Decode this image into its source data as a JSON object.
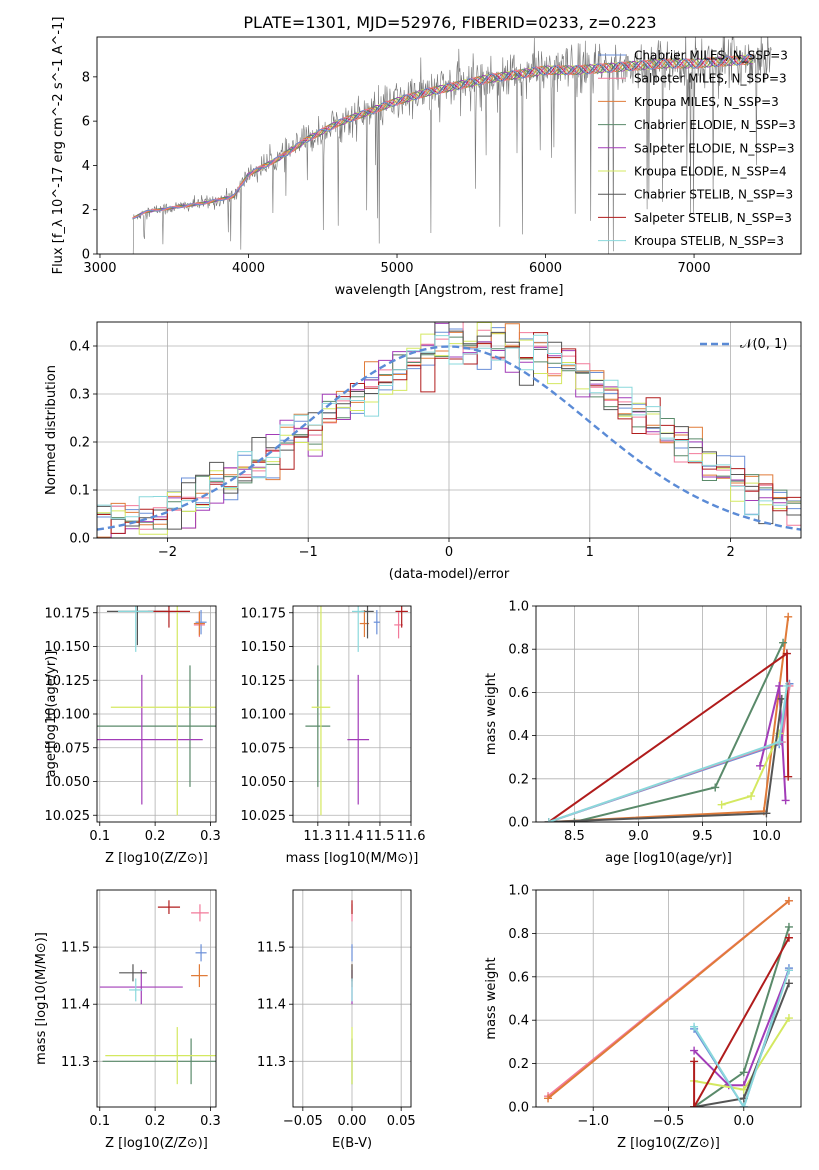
{
  "chart_data": [
    {
      "id": "spectrum",
      "type": "line",
      "title": "PLATE=1301, MJD=52976, FIBERID=0233, z=0.223",
      "xlabel": "wavelength [Angstrom, rest frame]",
      "ylabel": "Flux [f_λ 10^-17 erg cm^-2 s^-1 A^-1]",
      "xlim": [
        2980,
        7720
      ],
      "ylim": [
        0,
        9.8
      ],
      "xticks": [
        3000,
        4000,
        5000,
        6000,
        7000
      ],
      "yticks": [
        0,
        2,
        4,
        6,
        8
      ],
      "grid": false,
      "legend_position": "upper-right",
      "data_start": 3220,
      "data_end": 7520,
      "data_series": "grey observed spectrum (noisy)",
      "legend": [
        {
          "label": "Chabrier MILES, N_SSP=3",
          "color": "#6a8fd8"
        },
        {
          "label": "Salpeter MILES, N_SSP=3",
          "color": "#f27a9a"
        },
        {
          "label": "Kroupa MILES, N_SSP=3",
          "color": "#e07b39"
        },
        {
          "label": "Chabrier ELODIE, N_SSP=3",
          "color": "#5a8a6a"
        },
        {
          "label": "Salpeter ELODIE, N_SSP=3",
          "color": "#a23cb8"
        },
        {
          "label": "Kroupa ELODIE, N_SSP=4",
          "color": "#d4e860"
        },
        {
          "label": "Chabrier STELIB, N_SSP=3",
          "color": "#555555"
        },
        {
          "label": "Salpeter STELIB, N_SSP=3",
          "color": "#b01c1c"
        },
        {
          "label": "Kroupa STELIB, N_SSP=3",
          "color": "#8ad8dc"
        }
      ],
      "continuum": [
        [
          3220,
          1.6
        ],
        [
          3300,
          1.9
        ],
        [
          3500,
          2.1
        ],
        [
          3700,
          2.3
        ],
        [
          3900,
          2.6
        ],
        [
          4000,
          3.6
        ],
        [
          4200,
          4.3
        ],
        [
          4400,
          5.2
        ],
        [
          4600,
          5.9
        ],
        [
          4800,
          6.4
        ],
        [
          5000,
          6.9
        ],
        [
          5200,
          7.3
        ],
        [
          5400,
          7.6
        ],
        [
          5600,
          7.9
        ],
        [
          5800,
          8.1
        ],
        [
          6000,
          8.3
        ],
        [
          6200,
          8.3
        ],
        [
          6400,
          8.4
        ],
        [
          6600,
          8.5
        ],
        [
          6800,
          8.6
        ],
        [
          7000,
          8.6
        ],
        [
          7200,
          8.7
        ],
        [
          7400,
          8.8
        ],
        [
          7500,
          9.0
        ]
      ]
    },
    {
      "id": "residuals",
      "type": "bar",
      "xlabel": "(data-model)/error",
      "ylabel": "Normed distribution",
      "xlim": [
        -2.5,
        2.5
      ],
      "ylim": [
        0,
        0.45
      ],
      "xticks": [
        -2,
        -1,
        0,
        1,
        2
      ],
      "yticks": [
        0.0,
        0.1,
        0.2,
        0.3,
        0.4
      ],
      "grid": true,
      "legend_position": "upper-right",
      "legend": [
        {
          "label": "𝒩(0, 1)",
          "color": "#5b8bd6"
        }
      ],
      "bin_width": 0.1,
      "note": "nine step histograms (one per model), colors as in spectrum legend"
    },
    {
      "id": "age-vs-Z",
      "type": "scatter",
      "xlabel": "Z [log10(Z/Z⊙)]",
      "ylabel": "age  [log10(age/yr)]",
      "xlim": [
        0.095,
        0.31
      ],
      "ylim": [
        10.02,
        10.18
      ],
      "xticks": [
        0.1,
        0.2,
        0.3
      ],
      "yticks": [
        10.025,
        10.05,
        10.075,
        10.1,
        10.125,
        10.15,
        10.175
      ],
      "grid": true,
      "points": [
        {
          "x": 0.283,
          "y": 10.168,
          "xerr": 0.01,
          "yerr": 0.009,
          "color": "#6a8fd8"
        },
        {
          "x": 0.28,
          "y": 10.166,
          "xerr": 0.01,
          "yerr": 0.009,
          "color": "#f27a9a"
        },
        {
          "x": 0.28,
          "y": 10.167,
          "xerr": 0.01,
          "yerr": 0.009,
          "color": "#e07b39"
        },
        {
          "x": 0.263,
          "y": 10.091,
          "xerr": 0.17,
          "yerr": 0.045,
          "color": "#5a8a6a"
        },
        {
          "x": 0.176,
          "y": 10.081,
          "xerr": 0.11,
          "yerr": 0.048,
          "color": "#a23cb8"
        },
        {
          "x": 0.24,
          "y": 10.105,
          "xerr": 0.12,
          "yerr": 0.08,
          "color": "#d4e860"
        },
        {
          "x": 0.168,
          "y": 10.176,
          "xerr": 0.055,
          "yerr": 0.025,
          "color": "#555555"
        },
        {
          "x": 0.225,
          "y": 10.176,
          "xerr": 0.038,
          "yerr": 0.012,
          "color": "#b01c1c"
        },
        {
          "x": 0.165,
          "y": 10.176,
          "xerr": 0.032,
          "yerr": 0.03,
          "color": "#8ad8dc"
        }
      ]
    },
    {
      "id": "age-vs-mass",
      "type": "scatter",
      "xlabel": "mass [log10(M/M⊙)]",
      "ylabel": "",
      "xlim": [
        11.22,
        11.6
      ],
      "ylim": [
        10.02,
        10.18
      ],
      "xticks": [
        11.3,
        11.4,
        11.5,
        11.6
      ],
      "yticks": [
        10.025,
        10.05,
        10.075,
        10.1,
        10.125,
        10.15,
        10.175
      ],
      "grid": true,
      "points": [
        {
          "x": 11.49,
          "y": 10.168,
          "xerr": 0.01,
          "yerr": 0.009,
          "color": "#6a8fd8"
        },
        {
          "x": 11.56,
          "y": 10.166,
          "xerr": 0.014,
          "yerr": 0.01,
          "color": "#f27a9a"
        },
        {
          "x": 11.45,
          "y": 10.167,
          "xerr": 0.015,
          "yerr": 0.01,
          "color": "#e07b39"
        },
        {
          "x": 11.3,
          "y": 10.091,
          "xerr": 0.04,
          "yerr": 0.045,
          "color": "#5a8a6a"
        },
        {
          "x": 11.43,
          "y": 10.081,
          "xerr": 0.035,
          "yerr": 0.048,
          "color": "#a23cb8"
        },
        {
          "x": 11.31,
          "y": 10.105,
          "xerr": 0.03,
          "yerr": 0.08,
          "color": "#d4e860"
        },
        {
          "x": 11.46,
          "y": 10.176,
          "xerr": 0.02,
          "yerr": 0.02,
          "color": "#555555"
        },
        {
          "x": 11.57,
          "y": 10.176,
          "xerr": 0.02,
          "yerr": 0.012,
          "color": "#b01c1c"
        },
        {
          "x": 11.43,
          "y": 10.176,
          "xerr": 0.02,
          "yerr": 0.03,
          "color": "#8ad8dc"
        }
      ]
    },
    {
      "id": "massweight-vs-age",
      "type": "line",
      "xlabel": "age  [log10(age/yr)]",
      "ylabel": "mass weight",
      "xlim": [
        8.2,
        10.27
      ],
      "ylim": [
        0,
        1
      ],
      "xticks": [
        8.5,
        9.0,
        9.5,
        10.0
      ],
      "yticks": [
        0.0,
        0.2,
        0.4,
        0.6,
        0.8,
        1.0
      ],
      "grid": true,
      "series": [
        {
          "color": "#6a8fd8",
          "points": [
            [
              8.3,
              0.0
            ],
            [
              10.1,
              0.36
            ],
            [
              10.18,
              0.64
            ]
          ]
        },
        {
          "color": "#f27a9a",
          "points": [
            [
              8.3,
              0.0
            ],
            [
              10.12,
              0.37
            ],
            [
              10.18,
              0.63
            ]
          ]
        },
        {
          "color": "#e07b39",
          "points": [
            [
              8.3,
              0.0
            ],
            [
              9.98,
              0.05
            ],
            [
              10.17,
              0.95
            ]
          ]
        },
        {
          "color": "#5a8a6a",
          "points": [
            [
              8.5,
              0.0
            ],
            [
              9.6,
              0.16
            ],
            [
              10.13,
              0.83
            ]
          ]
        },
        {
          "color": "#a23cb8",
          "points": [
            [
              9.95,
              0.26
            ],
            [
              10.1,
              0.63
            ],
            [
              10.15,
              0.1
            ]
          ]
        },
        {
          "color": "#d4e860",
          "points": [
            [
              9.65,
              0.08
            ],
            [
              9.88,
              0.12
            ],
            [
              10.1,
              0.41
            ]
          ]
        },
        {
          "color": "#555555",
          "points": [
            [
              8.3,
              0.0
            ],
            [
              10.0,
              0.04
            ],
            [
              10.12,
              0.57
            ]
          ]
        },
        {
          "color": "#b01c1c",
          "points": [
            [
              8.3,
              0.0
            ],
            [
              10.16,
              0.78
            ],
            [
              10.17,
              0.21
            ]
          ]
        },
        {
          "color": "#8ad8dc",
          "points": [
            [
              8.3,
              0.0
            ],
            [
              10.1,
              0.37
            ],
            [
              10.16,
              0.63
            ]
          ]
        }
      ]
    },
    {
      "id": "mass-vs-Z",
      "type": "scatter",
      "xlabel": "Z [log10(Z/Z⊙)]",
      "ylabel": "mass [log10(M/M⊙)]",
      "xlim": [
        0.095,
        0.31
      ],
      "ylim": [
        11.22,
        11.6
      ],
      "xticks": [
        0.1,
        0.2,
        0.3
      ],
      "yticks": [
        11.3,
        11.4,
        11.5
      ],
      "grid": true,
      "points": [
        {
          "x": 0.283,
          "y": 11.49,
          "xerr": 0.01,
          "yerr": 0.015,
          "color": "#6a8fd8"
        },
        {
          "x": 0.281,
          "y": 11.56,
          "xerr": 0.016,
          "yerr": 0.015,
          "color": "#f27a9a"
        },
        {
          "x": 0.28,
          "y": 11.45,
          "xerr": 0.015,
          "yerr": 0.02,
          "color": "#e07b39"
        },
        {
          "x": 0.265,
          "y": 11.3,
          "xerr": 0.16,
          "yerr": 0.04,
          "color": "#5a8a6a"
        },
        {
          "x": 0.175,
          "y": 11.43,
          "xerr": 0.075,
          "yerr": 0.03,
          "color": "#a23cb8"
        },
        {
          "x": 0.24,
          "y": 11.31,
          "xerr": 0.13,
          "yerr": 0.05,
          "color": "#d4e860"
        },
        {
          "x": 0.16,
          "y": 11.455,
          "xerr": 0.025,
          "yerr": 0.015,
          "color": "#555555"
        },
        {
          "x": 0.225,
          "y": 11.57,
          "xerr": 0.02,
          "yerr": 0.012,
          "color": "#b01c1c"
        },
        {
          "x": 0.165,
          "y": 11.425,
          "xerr": 0.012,
          "yerr": 0.02,
          "color": "#8ad8dc"
        }
      ]
    },
    {
      "id": "mass-vs-ebv",
      "type": "scatter",
      "xlabel": "E(B-V)",
      "ylabel": "",
      "xlim": [
        -0.06,
        0.06
      ],
      "ylim": [
        11.22,
        11.6
      ],
      "xticks": [
        -0.05,
        0.0,
        0.05
      ],
      "yticks": [
        11.3,
        11.4,
        11.5
      ],
      "grid": true,
      "points": [
        {
          "x": 0.0,
          "y": 11.49,
          "yerr": 0.015,
          "color": "#6a8fd8"
        },
        {
          "x": 0.0,
          "y": 11.56,
          "yerr": 0.015,
          "color": "#f27a9a"
        },
        {
          "x": 0.0,
          "y": 11.45,
          "yerr": 0.02,
          "color": "#e07b39"
        },
        {
          "x": 0.0,
          "y": 11.3,
          "yerr": 0.04,
          "color": "#5a8a6a"
        },
        {
          "x": 0.0,
          "y": 11.43,
          "yerr": 0.03,
          "color": "#a23cb8"
        },
        {
          "x": 0.0,
          "y": 11.31,
          "yerr": 0.05,
          "color": "#d4e860"
        },
        {
          "x": 0.0,
          "y": 11.455,
          "yerr": 0.015,
          "color": "#555555"
        },
        {
          "x": 0.0,
          "y": 11.57,
          "yerr": 0.012,
          "color": "#b01c1c"
        },
        {
          "x": 0.0,
          "y": 11.425,
          "yerr": 0.02,
          "color": "#8ad8dc"
        }
      ]
    },
    {
      "id": "massweight-vs-Z",
      "type": "line",
      "xlabel": "Z [log10(Z/Z⊙)]",
      "ylabel": "mass weight",
      "xlim": [
        -1.38,
        0.38
      ],
      "ylim": [
        0,
        1
      ],
      "xticks": [
        -1.0,
        -0.5,
        0.0
      ],
      "yticks": [
        0.0,
        0.2,
        0.4,
        0.6,
        0.8,
        1.0
      ],
      "grid": true,
      "series": [
        {
          "color": "#6a8fd8",
          "points": [
            [
              -0.33,
              0.36
            ],
            [
              0.0,
              0.0
            ],
            [
              0.3,
              0.64
            ]
          ]
        },
        {
          "color": "#f27a9a",
          "points": [
            [
              -1.3,
              0.05
            ],
            [
              0.3,
              0.95
            ]
          ]
        },
        {
          "color": "#e07b39",
          "points": [
            [
              -1.3,
              0.04
            ],
            [
              0.3,
              0.95
            ]
          ]
        },
        {
          "color": "#5a8a6a",
          "points": [
            [
              -0.33,
              0.0
            ],
            [
              0.0,
              0.16
            ],
            [
              0.3,
              0.83
            ]
          ]
        },
        {
          "color": "#a23cb8",
          "points": [
            [
              -0.33,
              0.26
            ],
            [
              -0.1,
              0.1
            ],
            [
              0.0,
              0.1
            ],
            [
              0.3,
              0.63
            ]
          ]
        },
        {
          "color": "#d4e860",
          "points": [
            [
              -0.33,
              0.12
            ],
            [
              0.0,
              0.08
            ],
            [
              0.3,
              0.41
            ]
          ]
        },
        {
          "color": "#555555",
          "points": [
            [
              -0.33,
              0.0
            ],
            [
              0.0,
              0.04
            ],
            [
              0.3,
              0.57
            ]
          ]
        },
        {
          "color": "#b01c1c",
          "points": [
            [
              -0.33,
              0.21
            ],
            [
              -0.33,
              0.0
            ],
            [
              0.3,
              0.78
            ]
          ]
        },
        {
          "color": "#8ad8dc",
          "points": [
            [
              -0.33,
              0.37
            ],
            [
              0.0,
              0.0
            ],
            [
              0.3,
              0.63
            ]
          ]
        }
      ]
    }
  ]
}
